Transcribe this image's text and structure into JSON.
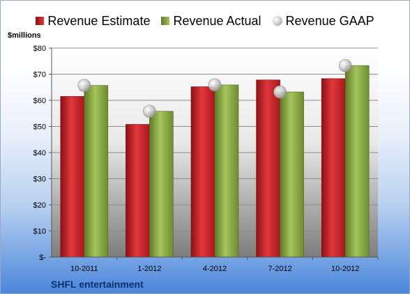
{
  "legend": {
    "estimate": "Revenue Estimate",
    "actual": "Revenue Actual",
    "gaap": "Revenue GAAP"
  },
  "unit_label": "$millions",
  "company_label": "SHFL entertainment",
  "colors": {
    "estimate": "#d32428",
    "actual": "#8fb14a",
    "gaap": "#c8c8c8",
    "estimate_dark": "#8d1015",
    "actual_dark": "#5e7a26"
  },
  "chart_data": {
    "type": "bar",
    "categories": [
      "10-2011",
      "1-2012",
      "4-2012",
      "7-2012",
      "10-2012"
    ],
    "series": [
      {
        "name": "Revenue Estimate",
        "values": [
          61.5,
          50.8,
          65.2,
          67.8,
          68.3
        ]
      },
      {
        "name": "Revenue Actual",
        "values": [
          65.7,
          55.8,
          65.9,
          63.2,
          73.3
        ]
      },
      {
        "name": "Revenue GAAP",
        "values": [
          65.7,
          55.8,
          65.9,
          63.2,
          73.3
        ]
      }
    ],
    "y_tick_labels": [
      "$-",
      "$10",
      "$20",
      "$30",
      "$40",
      "$50",
      "$60",
      "$70",
      "$80"
    ],
    "ylim": [
      0,
      80
    ],
    "ystep": 10,
    "grid": true,
    "legend_position": "top"
  }
}
